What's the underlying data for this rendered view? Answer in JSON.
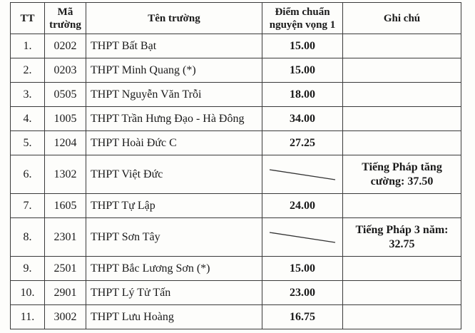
{
  "headers": {
    "tt": "TT",
    "ma_truong": "Mã trường",
    "ten_truong": "Tên trường",
    "diem_chuan": "Điểm chuẩn nguyện vọng 1",
    "ghi_chu": "Ghi chú"
  },
  "rows": [
    {
      "tt": "1.",
      "ma": "0202",
      "ten": "THPT Bất Bạt",
      "diem": "15.00",
      "ghi_chu": ""
    },
    {
      "tt": "2.",
      "ma": "0203",
      "ten": "THPT Minh Quang (*)",
      "diem": "15.00",
      "ghi_chu": ""
    },
    {
      "tt": "3.",
      "ma": "0505",
      "ten": "THPT Nguyễn Văn Trỗi",
      "diem": "18.00",
      "ghi_chu": ""
    },
    {
      "tt": "4.",
      "ma": "1005",
      "ten": "THPT Trần Hưng Đạo - Hà Đông",
      "diem": "34.00",
      "ghi_chu": ""
    },
    {
      "tt": "5.",
      "ma": "1204",
      "ten": "THPT Hoài Đức C",
      "diem": "27.25",
      "ghi_chu": ""
    },
    {
      "tt": "6.",
      "ma": "1302",
      "ten": "THPT Việt Đức",
      "diem": "",
      "ghi_chu": "Tiếng Pháp tăng cường: 37.50"
    },
    {
      "tt": "7.",
      "ma": "1605",
      "ten": "THPT Tự Lập",
      "diem": "24.00",
      "ghi_chu": ""
    },
    {
      "tt": "8.",
      "ma": "2301",
      "ten": "THPT Sơn Tây",
      "diem": "",
      "ghi_chu": "Tiếng Pháp 3 năm: 32.75"
    },
    {
      "tt": "9.",
      "ma": "2501",
      "ten": "THPT Bắc Lương Sơn (*)",
      "diem": "15.00",
      "ghi_chu": ""
    },
    {
      "tt": "10.",
      "ma": "2901",
      "ten": "THPT Lý Tử Tấn",
      "diem": "23.00",
      "ghi_chu": ""
    },
    {
      "tt": "11.",
      "ma": "3002",
      "ten": "THPT Lưu Hoàng",
      "diem": "16.75",
      "ghi_chu": ""
    }
  ]
}
